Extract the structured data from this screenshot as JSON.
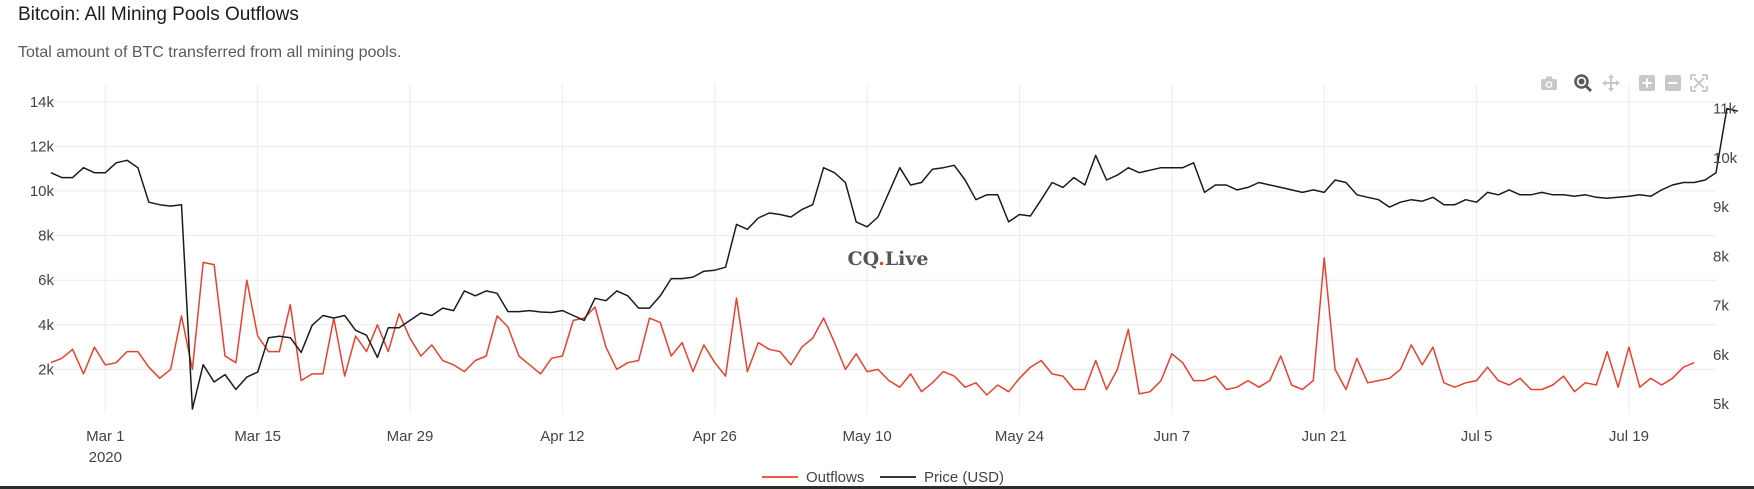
{
  "header": {
    "title": "Bitcoin: All Mining Pools Outflows",
    "subtitle": "Total amount of BTC transferred from all mining pools."
  },
  "modebar": {
    "icons": [
      "camera-icon",
      "zoom-icon",
      "pan-icon",
      "zoom-in-icon",
      "zoom-out-icon",
      "autoscale-icon"
    ]
  },
  "watermark": {
    "text_a": "CQ",
    "dot": ".",
    "text_b": "Live"
  },
  "colors": {
    "outflows": "#e8412e",
    "price": "#1b1b1b",
    "grid": "#ececec",
    "watermark_dot": "#e8412e"
  },
  "chart_data": {
    "type": "line",
    "title": "Bitcoin: All Mining Pools Outflows",
    "x_start": "2020-02-25",
    "x_step_days": 1,
    "xlim": [
      "2020-02-24",
      "2020-07-27"
    ],
    "x_ticks": [
      {
        "date": "2020-03-01",
        "label": "Mar 1",
        "sub": "2020"
      },
      {
        "date": "2020-03-15",
        "label": "Mar 15"
      },
      {
        "date": "2020-03-29",
        "label": "Mar 29"
      },
      {
        "date": "2020-04-12",
        "label": "Apr 12"
      },
      {
        "date": "2020-04-26",
        "label": "Apr 26"
      },
      {
        "date": "2020-05-10",
        "label": "May 10"
      },
      {
        "date": "2020-05-24",
        "label": "May 24"
      },
      {
        "date": "2020-06-07",
        "label": "Jun 7"
      },
      {
        "date": "2020-06-21",
        "label": "Jun 21"
      },
      {
        "date": "2020-07-05",
        "label": "Jul 5"
      },
      {
        "date": "2020-07-19",
        "label": "Jul 19"
      }
    ],
    "y_left": {
      "ylim": [
        0,
        14800
      ],
      "ticks": [
        2000,
        4000,
        6000,
        8000,
        10000,
        12000,
        14000
      ],
      "tick_labels": [
        "2k",
        "4k",
        "6k",
        "8k",
        "10k",
        "12k",
        "14k"
      ]
    },
    "y_right": {
      "ylim": [
        4800,
        11500
      ],
      "ticks": [
        5000,
        6000,
        7000,
        8000,
        9000,
        10000,
        11000
      ],
      "tick_labels": [
        "5k",
        "6k",
        "7k",
        "8k",
        "9k",
        "10k",
        "11k"
      ]
    },
    "legend": {
      "position": "bottom-center"
    },
    "series": [
      {
        "name": "Outflows",
        "axis": "left",
        "values": [
          2300,
          2500,
          2900,
          1800,
          3000,
          2200,
          2300,
          2800,
          2800,
          2100,
          1600,
          2000,
          4400,
          2000,
          6800,
          6700,
          2600,
          2300,
          6000,
          3500,
          2800,
          2800,
          4900,
          1500,
          1800,
          1800,
          4300,
          1700,
          3500,
          2800,
          4000,
          2800,
          4500,
          3400,
          2600,
          3100,
          2400,
          2200,
          1900,
          2400,
          2600,
          4400,
          3900,
          2600,
          2200,
          1800,
          2500,
          2600,
          4200,
          4300,
          4800,
          3000,
          2000,
          2300,
          2400,
          4300,
          4100,
          2600,
          3200,
          1900,
          3100,
          2300,
          1700,
          5200,
          1900,
          3200,
          2900,
          2800,
          2200,
          3000,
          3400,
          4300,
          3200,
          2000,
          2700,
          1900,
          2000,
          1500,
          1200,
          1800,
          1000,
          1400,
          1900,
          1700,
          1200,
          1400,
          850,
          1300,
          1000,
          1600,
          2100,
          2400,
          1800,
          1700,
          1100,
          1100,
          2400,
          1100,
          2000,
          3800,
          900,
          1000,
          1500,
          2700,
          2300,
          1500,
          1500,
          1700,
          1100,
          1200,
          1500,
          1200,
          1500,
          2600,
          1300,
          1100,
          1500,
          7000,
          2000,
          1100,
          2500,
          1400,
          1500,
          1600,
          2000,
          3100,
          2200,
          3000,
          1400,
          1200,
          1400,
          1500,
          2100,
          1500,
          1300,
          1600,
          1100,
          1100,
          1300,
          1700,
          1000,
          1400,
          1300,
          2800,
          1200,
          3000,
          1200,
          1600,
          1300,
          1600,
          2100,
          2300
        ]
      },
      {
        "name": "Price (USD)",
        "axis": "right",
        "values": [
          9700,
          9600,
          9600,
          9800,
          9700,
          9700,
          9900,
          9950,
          9800,
          9100,
          9050,
          9020,
          9050,
          4900,
          5800,
          5450,
          5600,
          5300,
          5550,
          5650,
          6350,
          6380,
          6350,
          6050,
          6600,
          6800,
          6750,
          6800,
          6500,
          6400,
          5950,
          6550,
          6550,
          6700,
          6850,
          6800,
          6950,
          6900,
          7300,
          7200,
          7300,
          7250,
          6880,
          6880,
          6900,
          6870,
          6860,
          6900,
          6800,
          6700,
          7150,
          7100,
          7300,
          7200,
          6950,
          6950,
          7200,
          7550,
          7550,
          7580,
          7700,
          7720,
          7780,
          8650,
          8550,
          8780,
          8880,
          8850,
          8800,
          8950,
          9050,
          9800,
          9700,
          9500,
          8700,
          8600,
          8800,
          9300,
          9800,
          9450,
          9500,
          9770,
          9800,
          9850,
          9550,
          9150,
          9250,
          9250,
          8700,
          8850,
          8820,
          9150,
          9500,
          9400,
          9600,
          9450,
          10050,
          9550,
          9650,
          9800,
          9700,
          9750,
          9800,
          9800,
          9800,
          9900,
          9300,
          9450,
          9450,
          9350,
          9400,
          9500,
          9450,
          9400,
          9350,
          9300,
          9350,
          9300,
          9550,
          9500,
          9250,
          9200,
          9150,
          9000,
          9100,
          9150,
          9120,
          9200,
          9050,
          9050,
          9150,
          9100,
          9300,
          9250,
          9350,
          9250,
          9250,
          9300,
          9250,
          9250,
          9220,
          9250,
          9200,
          9180,
          9200,
          9220,
          9250,
          9220,
          9350,
          9450,
          9500,
          9500,
          9550,
          9700,
          11000,
          10950
        ]
      }
    ]
  }
}
